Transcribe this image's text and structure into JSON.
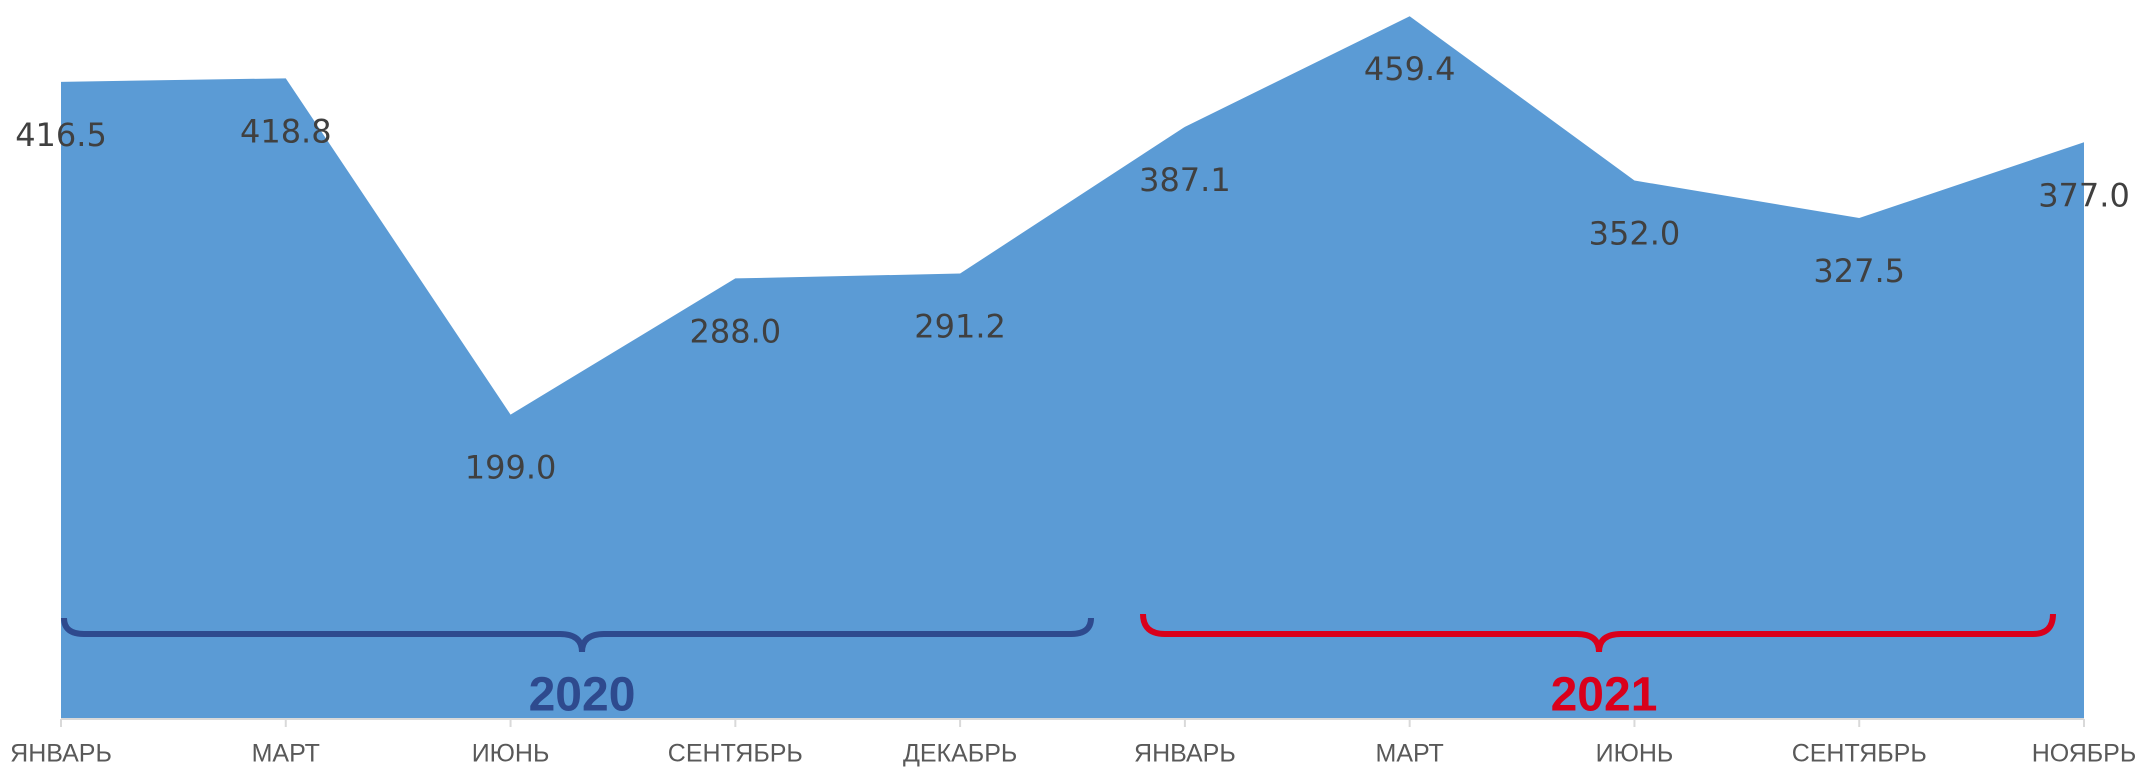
{
  "chart_data": {
    "type": "area",
    "categories": [
      "ЯНВАРЬ",
      "МАРТ",
      "ИЮНЬ",
      "СЕНТЯБРЬ",
      "ДЕКАБРЬ",
      "ЯНВАРЬ",
      "МАРТ",
      "ИЮНЬ",
      "СЕНТЯБРЬ",
      "НОЯБРЬ"
    ],
    "values": [
      416.5,
      418.8,
      199.0,
      288.0,
      291.2,
      387.1,
      459.4,
      352.0,
      327.5,
      377.0
    ],
    "value_labels": [
      "416.5",
      "418.8",
      "199.0",
      "288.0",
      "291.2",
      "387.1",
      "459.4",
      "352.0",
      "327.5",
      "377.0"
    ],
    "color": "#5b9bd5",
    "ylim": [
      0,
      470
    ],
    "annotations": [
      {
        "text": "2020",
        "color": "#2e4a8e"
      },
      {
        "text": "2021",
        "color": "#d9001b"
      }
    ]
  }
}
